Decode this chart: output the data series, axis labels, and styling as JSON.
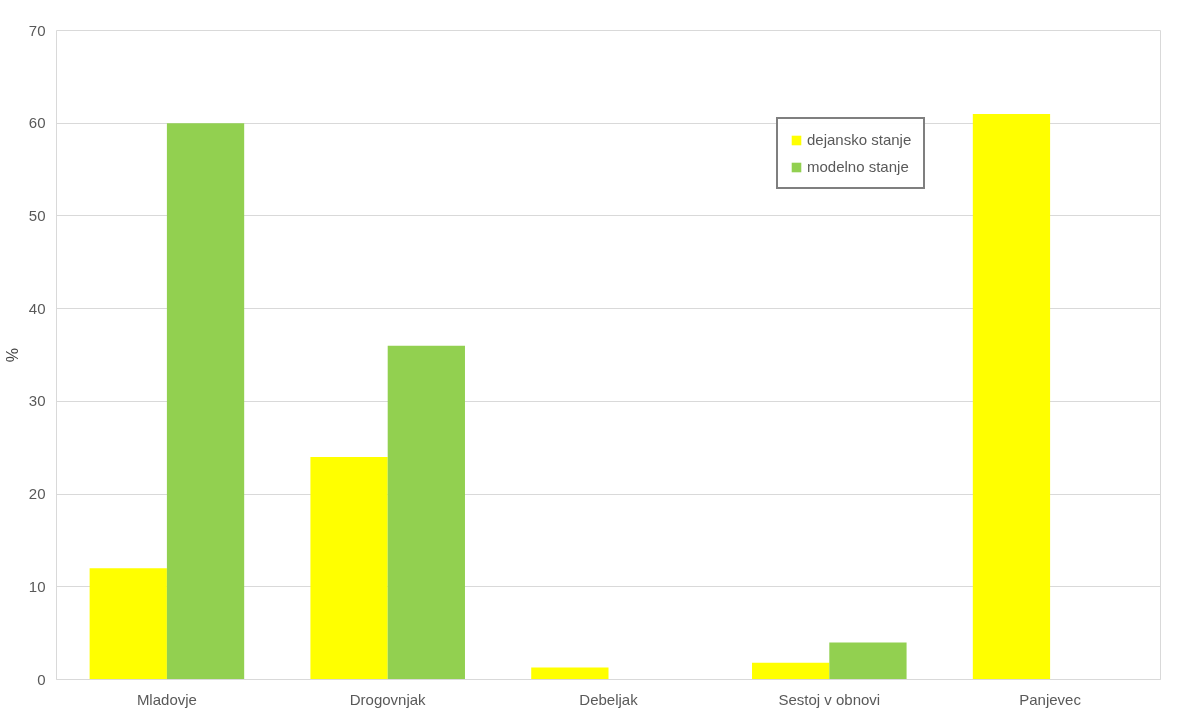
{
  "chart_data": {
    "type": "bar",
    "ylabel": "%",
    "categories": [
      "Mladovje",
      "Drogovnjak",
      "Debeljak",
      "Sestoj v obnovi",
      "Panjevec"
    ],
    "series": [
      {
        "name": "dejansko stanje",
        "color": "#ffff00",
        "values": [
          12,
          24,
          1.3,
          1.8,
          61
        ]
      },
      {
        "name": "modelno stanje",
        "color": "#92d050",
        "values": [
          60,
          36,
          0,
          4,
          0
        ]
      }
    ],
    "ylim": [
      0,
      70
    ],
    "yticks": [
      0,
      10,
      20,
      30,
      40,
      50,
      60,
      70
    ],
    "grid": "y",
    "legend": "top right"
  }
}
